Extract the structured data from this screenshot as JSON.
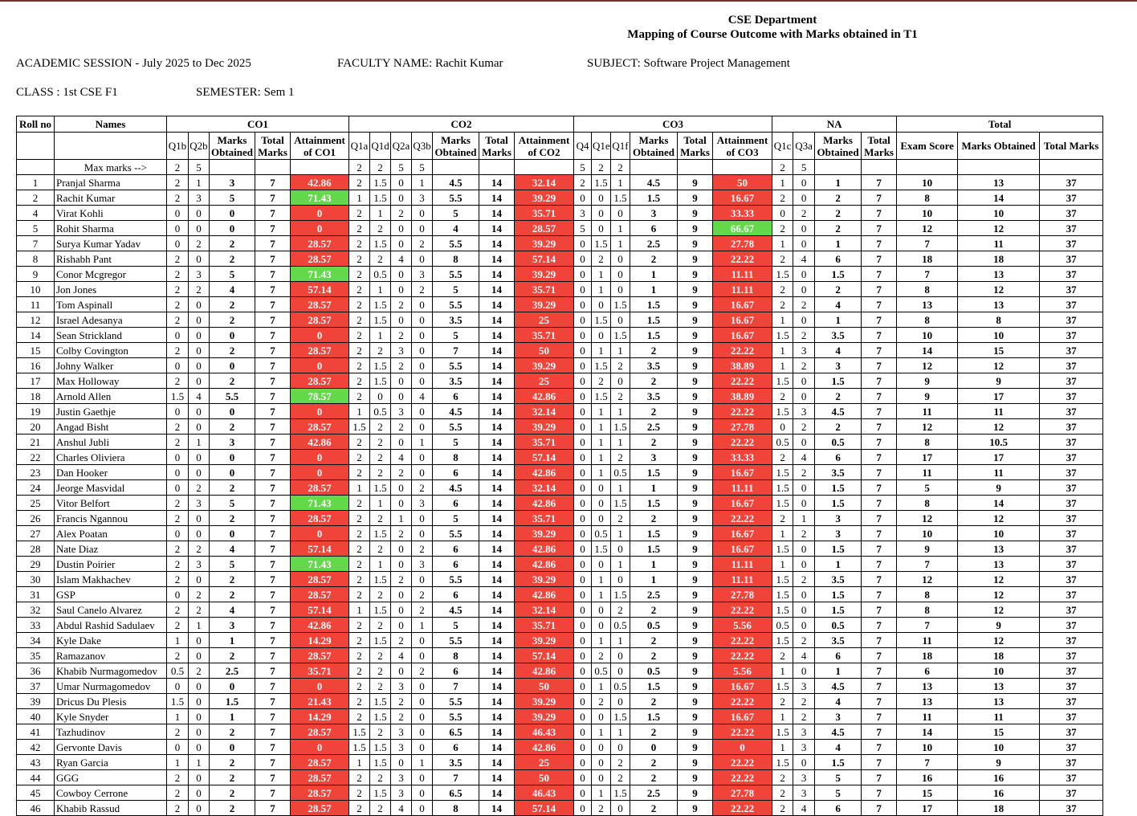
{
  "header": {
    "department": "CSE Department",
    "subtitle": "Mapping of Course Outcome with Marks obtained in T1",
    "session": "ACADEMIC SESSION - July 2025 to Dec 2025",
    "faculty": "FACULTY NAME: Rachit Kumar",
    "subject": "SUBJECT: Software Project Management",
    "class_label": "CLASS : 1st CSE F1",
    "semester": "SEMESTER: Sem 1"
  },
  "columns": {
    "roll": "Roll no",
    "names": "Names",
    "co1": "CO1",
    "co2": "CO2",
    "co3": "CO3",
    "na": "NA",
    "total": "Total",
    "co1_q": [
      "Q1b",
      "Q2b"
    ],
    "co2_q": [
      "Q1a",
      "Q1d",
      "Q2a",
      "Q3b"
    ],
    "co3_q": [
      "Q4",
      "Q1e",
      "Q1f"
    ],
    "na_q": [
      "Q1c",
      "Q3a"
    ],
    "marks_obtained": "Marks Obtained",
    "total_marks": "Total Marks",
    "att_co1": "Attainment of CO1",
    "att_co2": "Attainment of CO2",
    "att_co3": "Attainment of CO3",
    "exam_score": "Exam Score"
  },
  "max_marks": {
    "label": "Max marks -->",
    "co1": [
      "2",
      "5"
    ],
    "co2": [
      "2",
      "2",
      "5",
      "5"
    ],
    "co3": [
      "5",
      "2",
      "2"
    ],
    "na": [
      "2",
      "5"
    ]
  },
  "colors": {
    "low_attainment": "#f0433a",
    "high_attainment": "#63d84a"
  },
  "rows": [
    [
      "1",
      "Pranjal Sharma",
      "2",
      "1",
      "3",
      "7",
      "42.86",
      "2",
      "1.5",
      "0",
      "1",
      "4.5",
      "14",
      "32.14",
      "2",
      "1.5",
      "1",
      "4.5",
      "9",
      "50",
      "1",
      "0",
      "1",
      "7",
      "10",
      "13",
      "37"
    ],
    [
      "2",
      "Rachit Kumar",
      "2",
      "3",
      "5",
      "7",
      "71.43",
      "1",
      "1.5",
      "0",
      "3",
      "5.5",
      "14",
      "39.29",
      "0",
      "0",
      "1.5",
      "1.5",
      "9",
      "16.67",
      "2",
      "0",
      "2",
      "7",
      "8",
      "14",
      "37"
    ],
    [
      "4",
      "Virat Kohli",
      "0",
      "0",
      "0",
      "7",
      "0",
      "2",
      "1",
      "2",
      "0",
      "5",
      "14",
      "35.71",
      "3",
      "0",
      "0",
      "3",
      "9",
      "33.33",
      "0",
      "2",
      "2",
      "7",
      "10",
      "10",
      "37"
    ],
    [
      "5",
      "Rohit Sharma",
      "0",
      "0",
      "0",
      "7",
      "0",
      "2",
      "2",
      "0",
      "0",
      "4",
      "14",
      "28.57",
      "5",
      "0",
      "1",
      "6",
      "9",
      "66.67",
      "2",
      "0",
      "2",
      "7",
      "12",
      "12",
      "37"
    ],
    [
      "7",
      "Surya Kumar Yadav",
      "0",
      "2",
      "2",
      "7",
      "28.57",
      "2",
      "1.5",
      "0",
      "2",
      "5.5",
      "14",
      "39.29",
      "0",
      "1.5",
      "1",
      "2.5",
      "9",
      "27.78",
      "1",
      "0",
      "1",
      "7",
      "7",
      "11",
      "37"
    ],
    [
      "8",
      "Rishabh Pant",
      "2",
      "0",
      "2",
      "7",
      "28.57",
      "2",
      "2",
      "4",
      "0",
      "8",
      "14",
      "57.14",
      "0",
      "2",
      "0",
      "2",
      "9",
      "22.22",
      "2",
      "4",
      "6",
      "7",
      "18",
      "18",
      "37"
    ],
    [
      "9",
      "Conor Mcgregor",
      "2",
      "3",
      "5",
      "7",
      "71.43",
      "2",
      "0.5",
      "0",
      "3",
      "5.5",
      "14",
      "39.29",
      "0",
      "1",
      "0",
      "1",
      "9",
      "11.11",
      "1.5",
      "0",
      "1.5",
      "7",
      "7",
      "13",
      "37"
    ],
    [
      "10",
      "Jon Jones",
      "2",
      "2",
      "4",
      "7",
      "57.14",
      "2",
      "1",
      "0",
      "2",
      "5",
      "14",
      "35.71",
      "0",
      "1",
      "0",
      "1",
      "9",
      "11.11",
      "2",
      "0",
      "2",
      "7",
      "8",
      "12",
      "37"
    ],
    [
      "11",
      "Tom Aspinall",
      "2",
      "0",
      "2",
      "7",
      "28.57",
      "2",
      "1.5",
      "2",
      "0",
      "5.5",
      "14",
      "39.29",
      "0",
      "0",
      "1.5",
      "1.5",
      "9",
      "16.67",
      "2",
      "2",
      "4",
      "7",
      "13",
      "13",
      "37"
    ],
    [
      "12",
      "Israel Adesanya",
      "2",
      "0",
      "2",
      "7",
      "28.57",
      "2",
      "1.5",
      "0",
      "0",
      "3.5",
      "14",
      "25",
      "0",
      "1.5",
      "0",
      "1.5",
      "9",
      "16.67",
      "1",
      "0",
      "1",
      "7",
      "8",
      "8",
      "37"
    ],
    [
      "14",
      "Sean Strickland",
      "0",
      "0",
      "0",
      "7",
      "0",
      "2",
      "1",
      "2",
      "0",
      "5",
      "14",
      "35.71",
      "0",
      "0",
      "1.5",
      "1.5",
      "9",
      "16.67",
      "1.5",
      "2",
      "3.5",
      "7",
      "10",
      "10",
      "37"
    ],
    [
      "15",
      "Colby Covington",
      "2",
      "0",
      "2",
      "7",
      "28.57",
      "2",
      "2",
      "3",
      "0",
      "7",
      "14",
      "50",
      "0",
      "1",
      "1",
      "2",
      "9",
      "22.22",
      "1",
      "3",
      "4",
      "7",
      "14",
      "15",
      "37"
    ],
    [
      "16",
      "Johny Walker",
      "0",
      "0",
      "0",
      "7",
      "0",
      "2",
      "1.5",
      "2",
      "0",
      "5.5",
      "14",
      "39.29",
      "0",
      "1.5",
      "2",
      "3.5",
      "9",
      "38.89",
      "1",
      "2",
      "3",
      "7",
      "12",
      "12",
      "37"
    ],
    [
      "17",
      "Max Holloway",
      "2",
      "0",
      "2",
      "7",
      "28.57",
      "2",
      "1.5",
      "0",
      "0",
      "3.5",
      "14",
      "25",
      "0",
      "2",
      "0",
      "2",
      "9",
      "22.22",
      "1.5",
      "0",
      "1.5",
      "7",
      "9",
      "9",
      "37"
    ],
    [
      "18",
      "Arnold Allen",
      "1.5",
      "4",
      "5.5",
      "7",
      "78.57",
      "2",
      "0",
      "0",
      "4",
      "6",
      "14",
      "42.86",
      "0",
      "1.5",
      "2",
      "3.5",
      "9",
      "38.89",
      "2",
      "0",
      "2",
      "7",
      "9",
      "17",
      "37"
    ],
    [
      "19",
      "Justin Gaethje",
      "0",
      "0",
      "0",
      "7",
      "0",
      "1",
      "0.5",
      "3",
      "0",
      "4.5",
      "14",
      "32.14",
      "0",
      "1",
      "1",
      "2",
      "9",
      "22.22",
      "1.5",
      "3",
      "4.5",
      "7",
      "11",
      "11",
      "37"
    ],
    [
      "20",
      "Angad Bisht",
      "2",
      "0",
      "2",
      "7",
      "28.57",
      "1.5",
      "2",
      "2",
      "0",
      "5.5",
      "14",
      "39.29",
      "0",
      "1",
      "1.5",
      "2.5",
      "9",
      "27.78",
      "0",
      "2",
      "2",
      "7",
      "12",
      "12",
      "37"
    ],
    [
      "21",
      "Anshul Jubli",
      "2",
      "1",
      "3",
      "7",
      "42.86",
      "2",
      "2",
      "0",
      "1",
      "5",
      "14",
      "35.71",
      "0",
      "1",
      "1",
      "2",
      "9",
      "22.22",
      "0.5",
      "0",
      "0.5",
      "7",
      "8",
      "10.5",
      "37"
    ],
    [
      "22",
      "Charles Oliviera",
      "0",
      "0",
      "0",
      "7",
      "0",
      "2",
      "2",
      "4",
      "0",
      "8",
      "14",
      "57.14",
      "0",
      "1",
      "2",
      "3",
      "9",
      "33.33",
      "2",
      "4",
      "6",
      "7",
      "17",
      "17",
      "37"
    ],
    [
      "23",
      "Dan Hooker",
      "0",
      "0",
      "0",
      "7",
      "0",
      "2",
      "2",
      "2",
      "0",
      "6",
      "14",
      "42.86",
      "0",
      "1",
      "0.5",
      "1.5",
      "9",
      "16.67",
      "1.5",
      "2",
      "3.5",
      "7",
      "11",
      "11",
      "37"
    ],
    [
      "24",
      "Jeorge Masvidal",
      "0",
      "2",
      "2",
      "7",
      "28.57",
      "1",
      "1.5",
      "0",
      "2",
      "4.5",
      "14",
      "32.14",
      "0",
      "0",
      "1",
      "1",
      "9",
      "11.11",
      "1.5",
      "0",
      "1.5",
      "7",
      "5",
      "9",
      "37"
    ],
    [
      "25",
      "Vitor Belfort",
      "2",
      "3",
      "5",
      "7",
      "71.43",
      "2",
      "1",
      "0",
      "3",
      "6",
      "14",
      "42.86",
      "0",
      "0",
      "1.5",
      "1.5",
      "9",
      "16.67",
      "1.5",
      "0",
      "1.5",
      "7",
      "8",
      "14",
      "37"
    ],
    [
      "26",
      "Francis Ngannou",
      "2",
      "0",
      "2",
      "7",
      "28.57",
      "2",
      "2",
      "1",
      "0",
      "5",
      "14",
      "35.71",
      "0",
      "0",
      "2",
      "2",
      "9",
      "22.22",
      "2",
      "1",
      "3",
      "7",
      "12",
      "12",
      "37"
    ],
    [
      "27",
      "Alex Poatan",
      "0",
      "0",
      "0",
      "7",
      "0",
      "2",
      "1.5",
      "2",
      "0",
      "5.5",
      "14",
      "39.29",
      "0",
      "0.5",
      "1",
      "1.5",
      "9",
      "16.67",
      "1",
      "2",
      "3",
      "7",
      "10",
      "10",
      "37"
    ],
    [
      "28",
      "Nate Diaz",
      "2",
      "2",
      "4",
      "7",
      "57.14",
      "2",
      "2",
      "0",
      "2",
      "6",
      "14",
      "42.86",
      "0",
      "1.5",
      "0",
      "1.5",
      "9",
      "16.67",
      "1.5",
      "0",
      "1.5",
      "7",
      "9",
      "13",
      "37"
    ],
    [
      "29",
      "Dustin Poirier",
      "2",
      "3",
      "5",
      "7",
      "71.43",
      "2",
      "1",
      "0",
      "3",
      "6",
      "14",
      "42.86",
      "0",
      "0",
      "1",
      "1",
      "9",
      "11.11",
      "1",
      "0",
      "1",
      "7",
      "7",
      "13",
      "37"
    ],
    [
      "30",
      "Islam Makhachev",
      "2",
      "0",
      "2",
      "7",
      "28.57",
      "2",
      "1.5",
      "2",
      "0",
      "5.5",
      "14",
      "39.29",
      "0",
      "1",
      "0",
      "1",
      "9",
      "11.11",
      "1.5",
      "2",
      "3.5",
      "7",
      "12",
      "12",
      "37"
    ],
    [
      "31",
      "GSP",
      "0",
      "2",
      "2",
      "7",
      "28.57",
      "2",
      "2",
      "0",
      "2",
      "6",
      "14",
      "42.86",
      "0",
      "1",
      "1.5",
      "2.5",
      "9",
      "27.78",
      "1.5",
      "0",
      "1.5",
      "7",
      "8",
      "12",
      "37"
    ],
    [
      "32",
      "Saul Canelo Alvarez",
      "2",
      "2",
      "4",
      "7",
      "57.14",
      "1",
      "1.5",
      "0",
      "2",
      "4.5",
      "14",
      "32.14",
      "0",
      "0",
      "2",
      "2",
      "9",
      "22.22",
      "1.5",
      "0",
      "1.5",
      "7",
      "8",
      "12",
      "37"
    ],
    [
      "33",
      "Abdul Rashid Sadulaev",
      "2",
      "1",
      "3",
      "7",
      "42.86",
      "2",
      "2",
      "0",
      "1",
      "5",
      "14",
      "35.71",
      "0",
      "0",
      "0.5",
      "0.5",
      "9",
      "5.56",
      "0.5",
      "0",
      "0.5",
      "7",
      "7",
      "9",
      "37"
    ],
    [
      "34",
      "Kyle Dake",
      "1",
      "0",
      "1",
      "7",
      "14.29",
      "2",
      "1.5",
      "2",
      "0",
      "5.5",
      "14",
      "39.29",
      "0",
      "1",
      "1",
      "2",
      "9",
      "22.22",
      "1.5",
      "2",
      "3.5",
      "7",
      "11",
      "12",
      "37"
    ],
    [
      "35",
      "Ramazanov",
      "2",
      "0",
      "2",
      "7",
      "28.57",
      "2",
      "2",
      "4",
      "0",
      "8",
      "14",
      "57.14",
      "0",
      "2",
      "0",
      "2",
      "9",
      "22.22",
      "2",
      "4",
      "6",
      "7",
      "18",
      "18",
      "37"
    ],
    [
      "36",
      "Khabib Nurmagomedov",
      "0.5",
      "2",
      "2.5",
      "7",
      "35.71",
      "2",
      "2",
      "0",
      "2",
      "6",
      "14",
      "42.86",
      "0",
      "0.5",
      "0",
      "0.5",
      "9",
      "5.56",
      "1",
      "0",
      "1",
      "7",
      "6",
      "10",
      "37"
    ],
    [
      "37",
      "Umar Nurmagomedov",
      "0",
      "0",
      "0",
      "7",
      "0",
      "2",
      "2",
      "3",
      "0",
      "7",
      "14",
      "50",
      "0",
      "1",
      "0.5",
      "1.5",
      "9",
      "16.67",
      "1.5",
      "3",
      "4.5",
      "7",
      "13",
      "13",
      "37"
    ],
    [
      "39",
      "Dricus Du Plesis",
      "1.5",
      "0",
      "1.5",
      "7",
      "21.43",
      "2",
      "1.5",
      "2",
      "0",
      "5.5",
      "14",
      "39.29",
      "0",
      "2",
      "0",
      "2",
      "9",
      "22.22",
      "2",
      "2",
      "4",
      "7",
      "13",
      "13",
      "37"
    ],
    [
      "40",
      "Kyle Snyder",
      "1",
      "0",
      "1",
      "7",
      "14.29",
      "2",
      "1.5",
      "2",
      "0",
      "5.5",
      "14",
      "39.29",
      "0",
      "0",
      "1.5",
      "1.5",
      "9",
      "16.67",
      "1",
      "2",
      "3",
      "7",
      "11",
      "11",
      "37"
    ],
    [
      "41",
      "Tazhudinov",
      "2",
      "0",
      "2",
      "7",
      "28.57",
      "1.5",
      "2",
      "3",
      "0",
      "6.5",
      "14",
      "46.43",
      "0",
      "1",
      "1",
      "2",
      "9",
      "22.22",
      "1.5",
      "3",
      "4.5",
      "7",
      "14",
      "15",
      "37"
    ],
    [
      "42",
      "Gervonte Davis",
      "0",
      "0",
      "0",
      "7",
      "0",
      "1.5",
      "1.5",
      "3",
      "0",
      "6",
      "14",
      "42.86",
      "0",
      "0",
      "0",
      "0",
      "9",
      "0",
      "1",
      "3",
      "4",
      "7",
      "10",
      "10",
      "37"
    ],
    [
      "43",
      "Ryan Garcia",
      "1",
      "1",
      "2",
      "7",
      "28.57",
      "1",
      "1.5",
      "0",
      "1",
      "3.5",
      "14",
      "25",
      "0",
      "0",
      "2",
      "2",
      "9",
      "22.22",
      "1.5",
      "0",
      "1.5",
      "7",
      "7",
      "9",
      "37"
    ],
    [
      "44",
      "GGG",
      "2",
      "0",
      "2",
      "7",
      "28.57",
      "2",
      "2",
      "3",
      "0",
      "7",
      "14",
      "50",
      "0",
      "0",
      "2",
      "2",
      "9",
      "22.22",
      "2",
      "3",
      "5",
      "7",
      "16",
      "16",
      "37"
    ],
    [
      "45",
      "Cowboy Cerrone",
      "2",
      "0",
      "2",
      "7",
      "28.57",
      "2",
      "1.5",
      "3",
      "0",
      "6.5",
      "14",
      "46.43",
      "0",
      "1",
      "1.5",
      "2.5",
      "9",
      "27.78",
      "2",
      "3",
      "5",
      "7",
      "15",
      "16",
      "37"
    ],
    [
      "46",
      "Khabib Rassud",
      "2",
      "0",
      "2",
      "7",
      "28.57",
      "2",
      "2",
      "4",
      "0",
      "8",
      "14",
      "57.14",
      "0",
      "2",
      "0",
      "2",
      "9",
      "22.22",
      "2",
      "4",
      "6",
      "7",
      "17",
      "18",
      "37"
    ]
  ]
}
